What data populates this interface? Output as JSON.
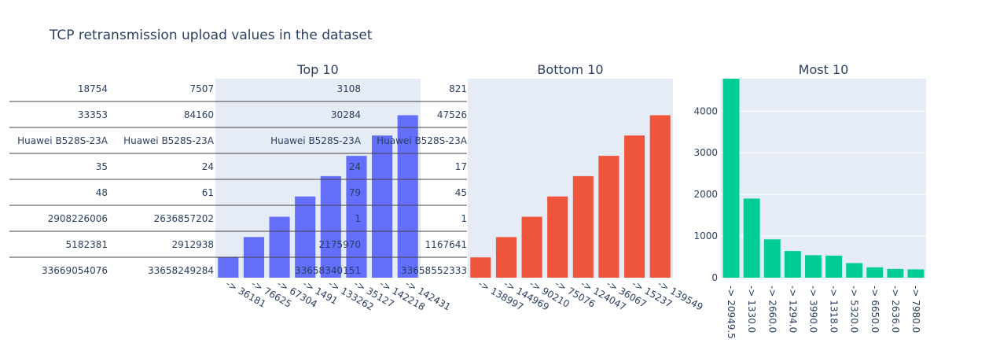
{
  "title": "TCP retransmission upload values in the dataset",
  "colors": {
    "top": "#636efa",
    "bottom": "#ef553b",
    "most": "#00cc96",
    "plot_bg": "#e5ecf6",
    "text": "#2a3f5f"
  },
  "table": {
    "columns": [
      [
        "18754",
        "33353",
        "Huawei B528S-23A",
        "35",
        "48",
        "2908226006",
        "5182381",
        "33669054076"
      ],
      [
        "7507",
        "84160",
        "Huawei B528S-23A",
        "24",
        "61",
        "2636857202",
        "2912938",
        "33658249284"
      ],
      [
        "3108",
        "30284",
        "Huawei B528S-23A",
        "24",
        "79",
        "1",
        "2175970",
        "33658340151"
      ],
      [
        "821",
        "47526",
        "Huawei B528S-23A",
        "17",
        "45",
        "1",
        "1167641",
        "33658552333"
      ]
    ]
  },
  "chart_data": [
    {
      "type": "bar",
      "title": "Top 10",
      "categories": [
        "-> 36181",
        "-> 76625",
        "-> 67304",
        "-> 1491",
        "-> 133262",
        "-> 35127",
        "-> 142218",
        "-> 142431"
      ],
      "values": [
        1,
        2,
        3,
        4,
        5,
        6,
        7,
        8
      ],
      "ylim": [
        0,
        9.8
      ],
      "color": "#636efa"
    },
    {
      "type": "bar",
      "title": "Bottom 10",
      "categories": [
        "-> 138997",
        "-> 144969",
        "-> 90210",
        "-> 75076",
        "-> 124047",
        "-> 36067",
        "-> 15237",
        "-> 139549"
      ],
      "values": [
        1,
        2,
        3,
        4,
        5,
        6,
        7,
        8
      ],
      "ylim": [
        0,
        9.8
      ],
      "color": "#ef553b"
    },
    {
      "type": "bar",
      "title": "Most 10",
      "categories": [
        "-> 20949.5",
        "-> 1330.0",
        "-> 2660.0",
        "-> 1294.0",
        "-> 3990.0",
        "-> 1318.0",
        "-> 5320.0",
        "-> 6650.0",
        "-> 2636.0",
        "-> 7980.0"
      ],
      "values": [
        4780,
        1900,
        920,
        640,
        540,
        530,
        350,
        250,
        210,
        200
      ],
      "yticks": [
        0,
        1000,
        2000,
        3000,
        4000
      ],
      "ylim": [
        0,
        4780
      ],
      "color": "#00cc96"
    }
  ]
}
